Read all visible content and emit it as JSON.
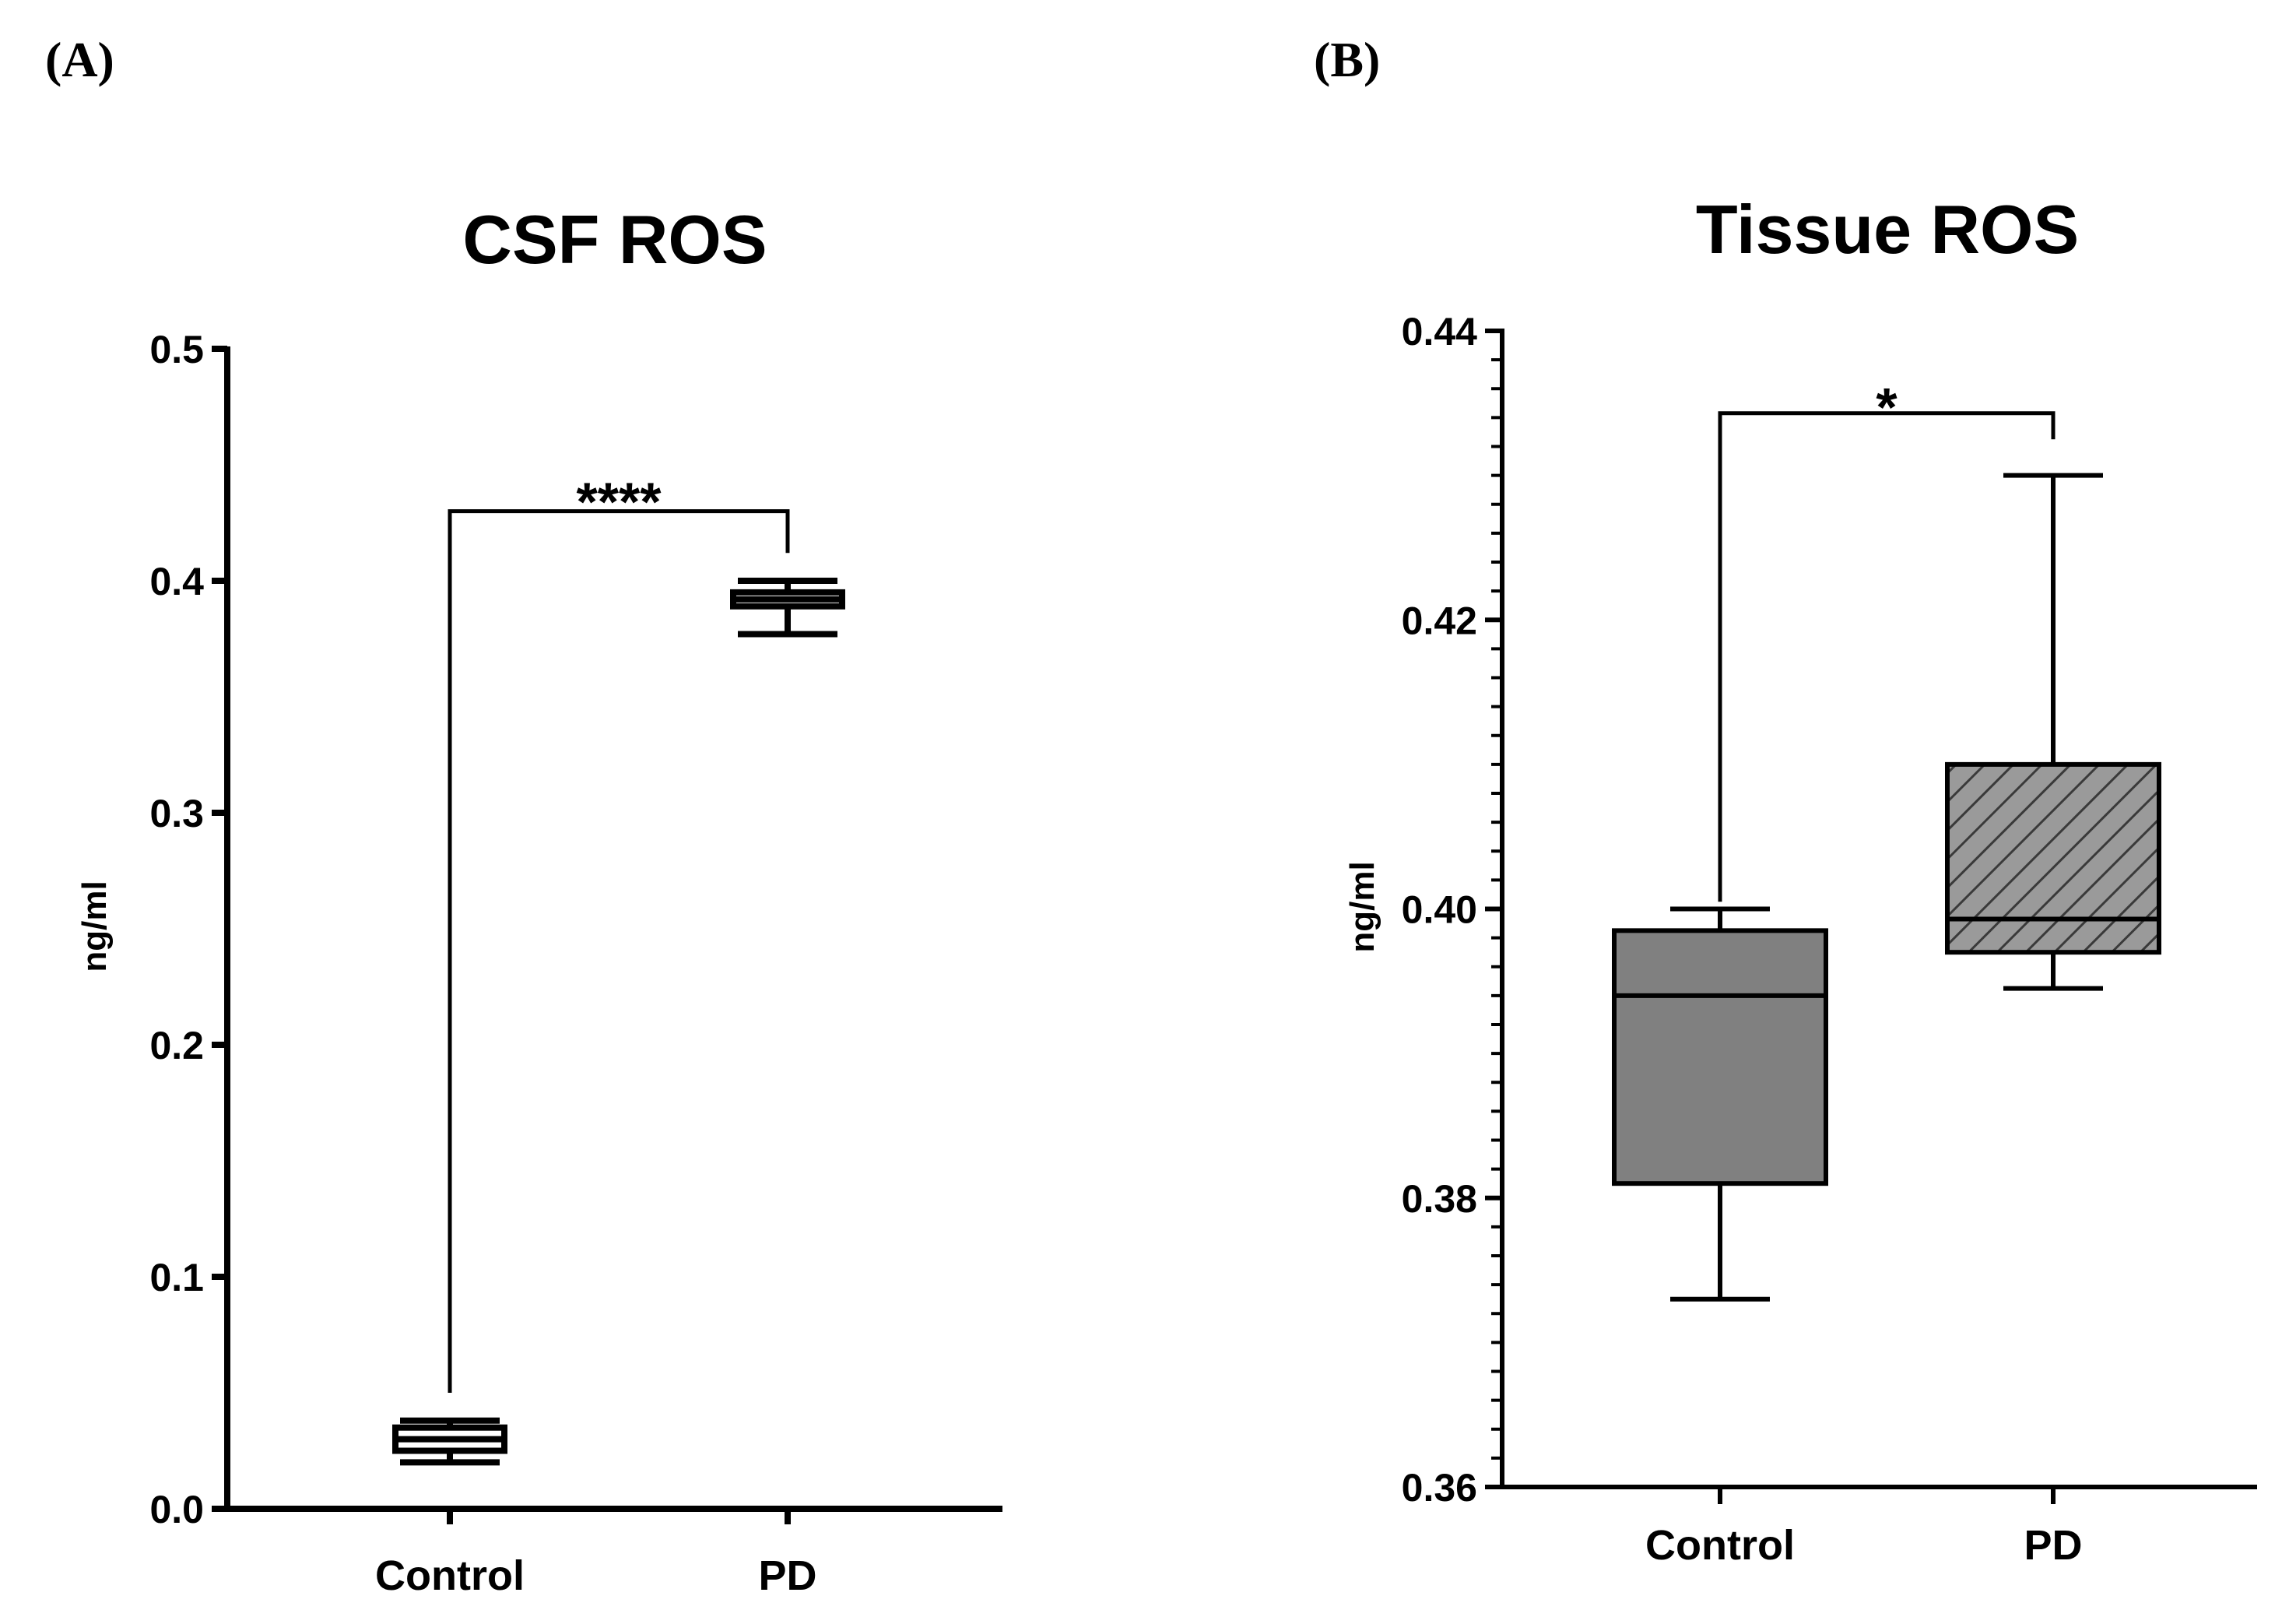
{
  "chart_data": [
    {
      "panel_label": "(A)",
      "type": "box",
      "title": "CSF ROS",
      "xlabel": "",
      "ylabel": "ng/ml",
      "ylim": [
        0.0,
        0.5
      ],
      "yticks": [
        "0.0",
        "0.1",
        "0.2",
        "0.3",
        "0.4",
        "0.5"
      ],
      "minor_ticks": false,
      "categories": [
        "Control",
        "PD"
      ],
      "boxes": [
        {
          "name": "Control",
          "min": 0.02,
          "q1": 0.025,
          "median": 0.03,
          "q3": 0.035,
          "max": 0.038,
          "fill": "none"
        },
        {
          "name": "PD",
          "min": 0.377,
          "q1": 0.389,
          "median": 0.392,
          "q3": 0.395,
          "max": 0.4,
          "fill": "none"
        }
      ],
      "significance": {
        "label": "****",
        "between": [
          "Control",
          "PD"
        ],
        "y": 0.43,
        "left_end": 0.05,
        "right_end": 0.412
      }
    },
    {
      "panel_label": "(B)",
      "type": "box",
      "title": "Tissue ROS",
      "xlabel": "",
      "ylabel": "ng/ml",
      "ylim": [
        0.36,
        0.44
      ],
      "yticks": [
        "0.36",
        "0.38",
        "0.40",
        "0.42",
        "0.44"
      ],
      "minor_ticks": true,
      "categories": [
        "Control",
        "PD"
      ],
      "boxes": [
        {
          "name": "Control",
          "min": 0.373,
          "q1": 0.381,
          "median": 0.394,
          "q3": 0.3985,
          "max": 0.4,
          "fill": "#808080"
        },
        {
          "name": "PD",
          "min": 0.3945,
          "q1": 0.397,
          "median": 0.3993,
          "q3": 0.41,
          "max": 0.43,
          "fill": "hatched-gray"
        }
      ],
      "significance": {
        "label": "*",
        "between": [
          "Control",
          "PD"
        ],
        "y": 0.4343,
        "left_end": 0.4005,
        "right_end": 0.4325
      }
    }
  ]
}
